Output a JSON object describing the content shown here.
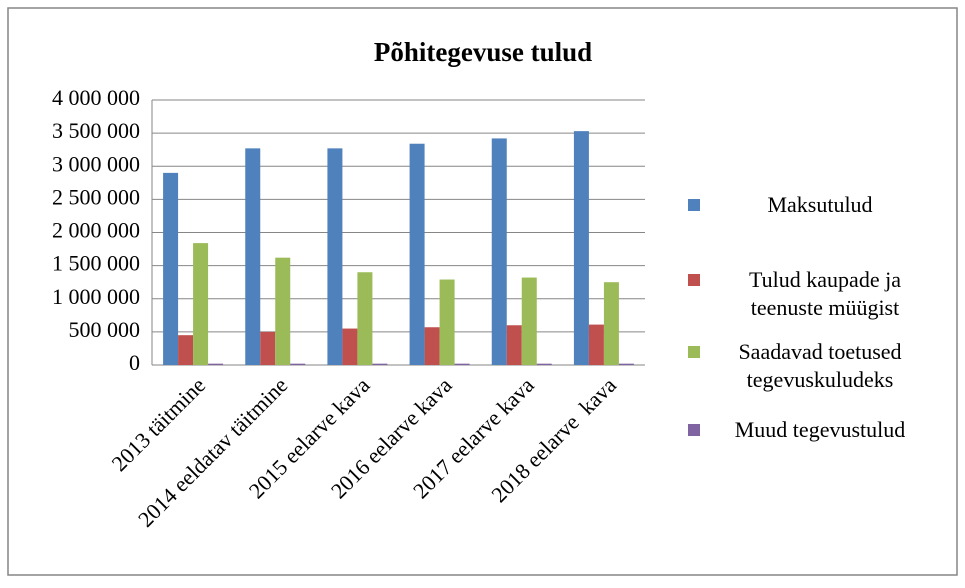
{
  "chart_data": {
    "type": "bar",
    "title": "Põhitegevuse tulud",
    "categories": [
      "2013 täitmine",
      "2014 eeldatav täitmine",
      "2015 eelarve kava",
      "2016 eelarve kava",
      "2017 eelarve kava",
      "2018 eelarve  kava"
    ],
    "series": [
      {
        "name": "Maksutulud",
        "color": "#4f81bd",
        "values": [
          2900000,
          3270000,
          3270000,
          3340000,
          3420000,
          3530000
        ]
      },
      {
        "name": "Tulud kaupade ja teenuste müügist",
        "color": "#c0504d",
        "values": [
          450000,
          500000,
          550000,
          570000,
          600000,
          610000
        ]
      },
      {
        "name": "Saadavad toetused tegevuskuludeks",
        "color": "#9bbb59",
        "values": [
          1840000,
          1620000,
          1400000,
          1290000,
          1320000,
          1250000
        ]
      },
      {
        "name": "Muud tegevustulud",
        "color": "#8064a2",
        "values": [
          20000,
          20000,
          20000,
          20000,
          20000,
          20000
        ]
      }
    ],
    "ylim": [
      0,
      4000000
    ],
    "yticks": [
      0,
      {
        "value": 500000,
        "label": "500 000"
      },
      {
        "value": 1000000,
        "label": "1 000 000"
      },
      {
        "value": 1500000,
        "label": "1 500 000"
      },
      {
        "value": 2000000,
        "label": "2 000 000"
      },
      {
        "value": 2500000,
        "label": "2 500 000"
      },
      {
        "value": 3000000,
        "label": "3 000 000"
      },
      {
        "value": 3500000,
        "label": "3 500 000"
      },
      {
        "value": 4000000,
        "label": "4 000 000"
      }
    ],
    "grid": true,
    "legend": "right"
  }
}
